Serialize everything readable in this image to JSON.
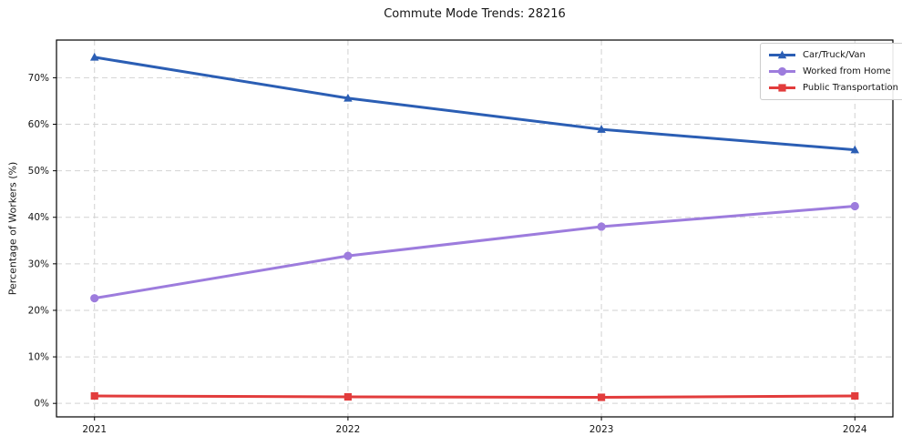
{
  "title": "Commute Mode Trends: 28216",
  "chart_data": {
    "type": "line",
    "x": [
      2021,
      2022,
      2023,
      2024
    ],
    "x_labels": [
      "2021",
      "2022",
      "2023",
      "2024"
    ],
    "series": [
      {
        "name": "Car/Truck/Van",
        "values": [
          74.4,
          65.6,
          58.9,
          54.5
        ],
        "color": "#2b5eb4",
        "marker": "triangle"
      },
      {
        "name": "Worked from Home",
        "values": [
          22.6,
          31.7,
          38.0,
          42.4
        ],
        "color": "#9d7cdd",
        "marker": "circle"
      },
      {
        "name": "Public Transportation",
        "values": [
          1.6,
          1.4,
          1.3,
          1.6
        ],
        "color": "#e23c3c",
        "marker": "square"
      }
    ],
    "ylabel": "Percentage of Workers (%)",
    "xlabel": "",
    "y_ticks": [
      0,
      10,
      20,
      30,
      40,
      50,
      60,
      70
    ],
    "y_tick_labels": [
      "0%",
      "10%",
      "20%",
      "30%",
      "40%",
      "50%",
      "60%",
      "70%"
    ],
    "ylim": [
      -2.9,
      78.1
    ],
    "xlim": [
      2020.85,
      2024.15
    ],
    "grid": true,
    "grid_style": "dashed",
    "legend_position": "upper right",
    "line_width": 3,
    "spine_color": "#000000",
    "grid_color": "#d2d2d2"
  }
}
